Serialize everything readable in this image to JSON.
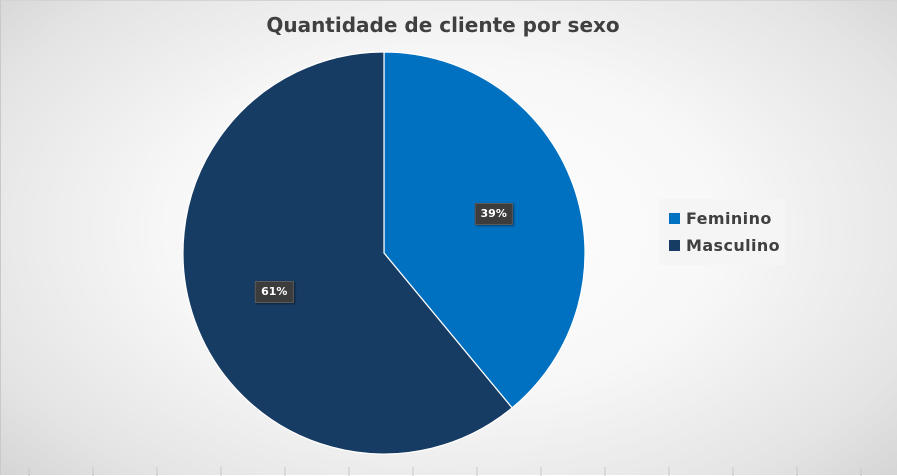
{
  "chart_data": {
    "type": "pie",
    "title": "Quantidade de cliente por sexo",
    "categories": [
      "Feminino",
      "Masculino"
    ],
    "values": [
      39,
      61
    ],
    "labels": [
      "39%",
      "61%"
    ],
    "colors": [
      "#0070c0",
      "#173c64"
    ],
    "legend": {
      "placement": "right",
      "entries": [
        "Feminino",
        "Masculino"
      ]
    }
  }
}
